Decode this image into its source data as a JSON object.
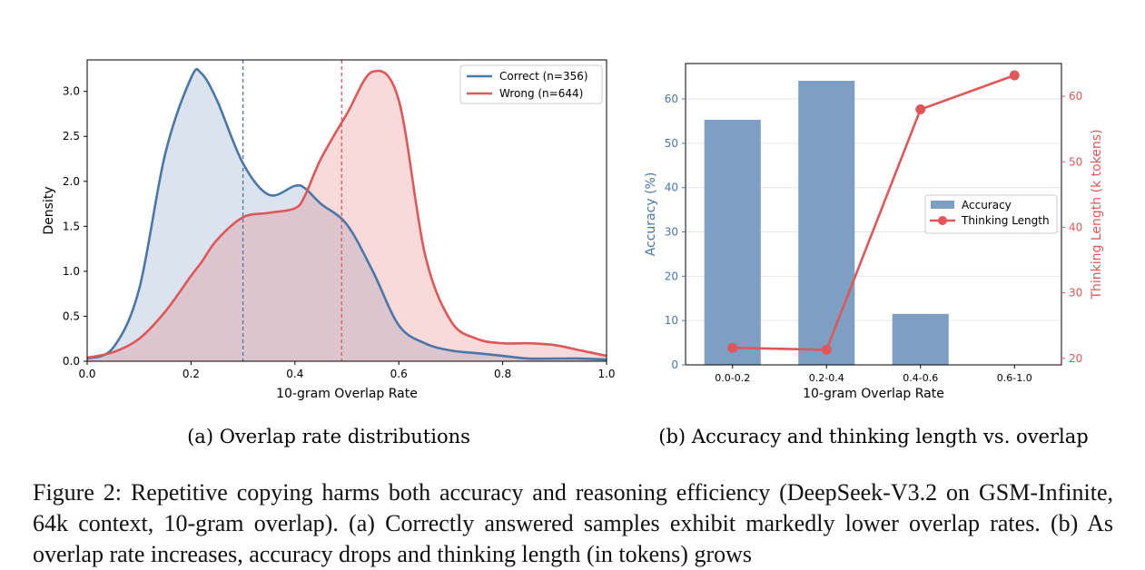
{
  "chart_data": [
    {
      "type": "area",
      "caption": "(a) Overlap rate distributions",
      "xlabel": "10-gram Overlap Rate",
      "ylabel": "Density",
      "xlim": [
        0.0,
        1.0
      ],
      "ylim": [
        0.0,
        3.35
      ],
      "xticks": [
        "0.0",
        "0.2",
        "0.4",
        "0.6",
        "0.8",
        "1.0"
      ],
      "yticks": [
        "0.0",
        "0.5",
        "1.0",
        "1.5",
        "2.0",
        "2.5",
        "3.0"
      ],
      "legend_position": "top-right",
      "x": [
        0.0,
        0.05,
        0.1,
        0.15,
        0.2,
        0.22,
        0.25,
        0.3,
        0.35,
        0.4,
        0.42,
        0.45,
        0.5,
        0.55,
        0.6,
        0.65,
        0.7,
        0.75,
        0.8,
        0.85,
        0.9,
        0.95,
        1.0
      ],
      "series": [
        {
          "name": "Correct (n=356)",
          "color": "#4a76a8",
          "mean": 0.3,
          "values": [
            0.03,
            0.15,
            0.8,
            2.3,
            3.15,
            3.2,
            2.9,
            2.2,
            1.85,
            1.95,
            1.92,
            1.75,
            1.52,
            1.0,
            0.4,
            0.2,
            0.12,
            0.09,
            0.06,
            0.03,
            0.03,
            0.03,
            0.02
          ]
        },
        {
          "name": "Wrong (n=644)",
          "color": "#e05759",
          "mean": 0.49,
          "values": [
            0.04,
            0.1,
            0.25,
            0.55,
            0.95,
            1.1,
            1.35,
            1.6,
            1.65,
            1.7,
            1.85,
            2.25,
            2.75,
            3.22,
            2.9,
            1.2,
            0.45,
            0.25,
            0.2,
            0.2,
            0.18,
            0.12,
            0.06
          ]
        }
      ]
    },
    {
      "type": "bar",
      "caption": "(b) Accuracy and thinking length vs. overlap",
      "xlabel": "10-gram Overlap Rate",
      "ylabel": "Accuracy (%)",
      "ylabel_right": "Thinking Length (k tokens)",
      "categories": [
        "0.0-0.2",
        "0.2-0.4",
        "0.4-0.6",
        "0.6-1.0"
      ],
      "ylim": [
        0,
        68
      ],
      "ylim_right": [
        19,
        65
      ],
      "yticks": [
        "0",
        "10",
        "20",
        "30",
        "40",
        "50",
        "60"
      ],
      "yticks_right": [
        "20",
        "30",
        "40",
        "50",
        "60"
      ],
      "legend_position": "center-right",
      "series": [
        {
          "name": "Accuracy",
          "type": "bar",
          "color": "#7e9fc4",
          "values": [
            55.3,
            64.1,
            11.5,
            0
          ]
        },
        {
          "name": "Thinking Length",
          "type": "line",
          "color": "#e05759",
          "values": [
            21.6,
            21.3,
            58.0,
            63.2
          ]
        }
      ]
    }
  ],
  "caption": "Figure 2: Repetitive copying harms both accuracy and reasoning efficiency (DeepSeek-V3.2 on GSM-Infinite, 64k context, 10-gram overlap). (a) Correctly answered samples exhibit markedly lower overlap rates. (b) As overlap rate increases, accuracy drops and thinking length (in tokens) grows"
}
